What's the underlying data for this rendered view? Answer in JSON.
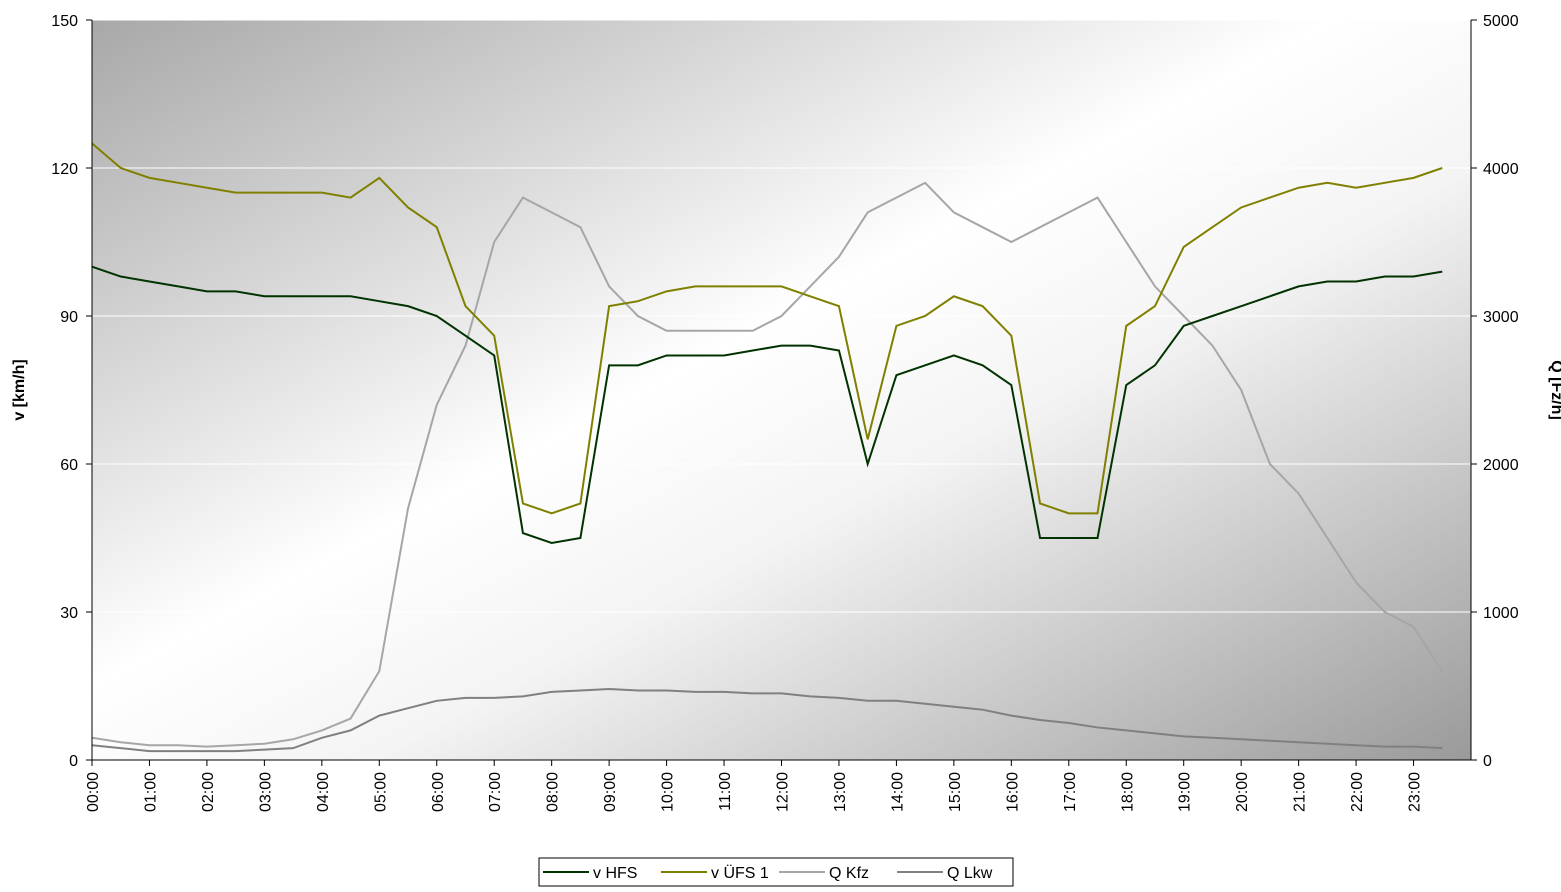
{
  "chart_data": {
    "type": "line",
    "y_label": "v [km/h]",
    "y2_label": "Q [Fz/h]",
    "categories": [
      "00:00",
      null,
      "01:00",
      null,
      "02:00",
      null,
      "03:00",
      null,
      "04:00",
      null,
      "05:00",
      null,
      "06:00",
      null,
      "07:00",
      null,
      "08:00",
      null,
      "09:00",
      null,
      "10:00",
      null,
      "11:00",
      null,
      "12:00",
      null,
      "13:00",
      null,
      "14:00",
      null,
      "15:00",
      null,
      "16:00",
      null,
      "17:00",
      null,
      "18:00",
      null,
      "19:00",
      null,
      "20:00",
      null,
      "21:00",
      null,
      "22:00",
      null,
      "23:00",
      null
    ],
    "ylim": [
      0,
      150
    ],
    "yticks": [
      0,
      30,
      60,
      90,
      120,
      150
    ],
    "y2lim": [
      0,
      5000
    ],
    "y2ticks": [
      0,
      1000,
      2000,
      3000,
      4000,
      5000
    ],
    "grid": true,
    "series": [
      {
        "name": "v HFS",
        "color": "#003300",
        "values": [
          100,
          98,
          97,
          96,
          95,
          95,
          94,
          94,
          94,
          94,
          93,
          92,
          90,
          86,
          82,
          46,
          44,
          45,
          80,
          80,
          82,
          82,
          82,
          83,
          84,
          84,
          83,
          60,
          78,
          80,
          82,
          80,
          76,
          45,
          45,
          45,
          76,
          80,
          88,
          90,
          92,
          94,
          96,
          97,
          97,
          98,
          98,
          99
        ]
      },
      {
        "name": "v ÜFS 1",
        "color": "#808000",
        "values": [
          125,
          120,
          118,
          117,
          116,
          115,
          115,
          115,
          115,
          114,
          118,
          112,
          108,
          92,
          86,
          52,
          50,
          52,
          92,
          93,
          95,
          96,
          96,
          96,
          96,
          94,
          92,
          65,
          88,
          90,
          94,
          92,
          86,
          52,
          50,
          50,
          88,
          92,
          104,
          108,
          112,
          114,
          116,
          117,
          116,
          117,
          118,
          120
        ]
      },
      {
        "name": "Q Kfz",
        "color": "#a6a6a6",
        "axis": "y2",
        "values": [
          150,
          120,
          100,
          100,
          90,
          100,
          110,
          140,
          200,
          280,
          600,
          1700,
          2400,
          2800,
          3500,
          3800,
          3700,
          3600,
          3200,
          3000,
          2900,
          2900,
          2900,
          2900,
          3000,
          3200,
          3400,
          3700,
          3800,
          3900,
          3700,
          3600,
          3500,
          3600,
          3700,
          3800,
          3500,
          3200,
          3000,
          2800,
          2500,
          2000,
          1800,
          1500,
          1200,
          1000,
          900,
          600
        ]
      },
      {
        "name": "Q Lkw",
        "color": "#808080",
        "axis": "y2",
        "values": [
          100,
          80,
          60,
          60,
          60,
          60,
          70,
          80,
          150,
          200,
          300,
          350,
          400,
          420,
          420,
          430,
          460,
          470,
          480,
          470,
          470,
          460,
          460,
          450,
          450,
          430,
          420,
          400,
          400,
          380,
          360,
          340,
          300,
          270,
          250,
          220,
          200,
          180,
          160,
          150,
          140,
          130,
          120,
          110,
          100,
          90,
          90,
          80
        ]
      }
    ]
  }
}
